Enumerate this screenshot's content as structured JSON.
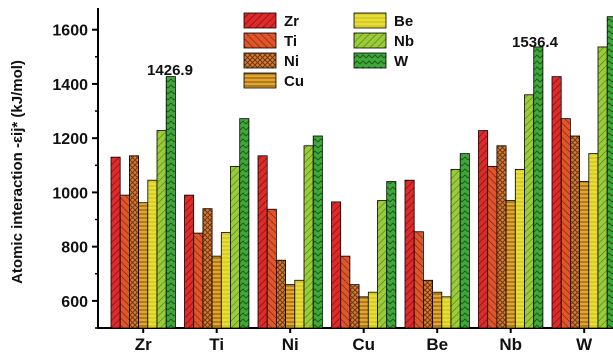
{
  "chart_data": {
    "type": "bar",
    "ylabel": "Atomic interaction -εij* (kJ/mol)",
    "ylim": [
      500,
      1680
    ],
    "yticks": [
      600,
      800,
      1000,
      1200,
      1400,
      1600
    ],
    "categories": [
      "Zr",
      "Ti",
      "Ni",
      "Cu",
      "Be",
      "Nb",
      "W"
    ],
    "series": [
      {
        "name": "Zr",
        "color": "#e02a2a",
        "values": [
          1130,
          990,
          1135,
          965,
          1045,
          1228,
          1426.9
        ]
      },
      {
        "name": "Ti",
        "color": "#e2552a",
        "values": [
          990,
          850,
          938,
          765,
          855,
          1096,
          1272
        ]
      },
      {
        "name": "Ni",
        "color": "#d87a35",
        "values": [
          1135,
          940,
          750,
          660,
          676,
          1172,
          1208
        ]
      },
      {
        "name": "Cu",
        "color": "#e3a52e",
        "values": [
          962,
          765,
          660,
          615,
          632,
          970,
          1040
        ]
      },
      {
        "name": "Be",
        "color": "#e2d830",
        "values": [
          1045,
          852,
          676,
          632,
          615,
          1085,
          1143
        ]
      },
      {
        "name": "Nb",
        "color": "#9acc3a",
        "values": [
          1228,
          1096,
          1172,
          970,
          1085,
          1360,
          1536.4
        ]
      },
      {
        "name": "W",
        "color": "#3fa83a",
        "values": [
          1426.9,
          1272,
          1208,
          1040,
          1143,
          1536.4,
          1648
        ]
      }
    ],
    "annotations": [
      "1426.9",
      "1536.4"
    ],
    "legend_position": "top-center"
  }
}
